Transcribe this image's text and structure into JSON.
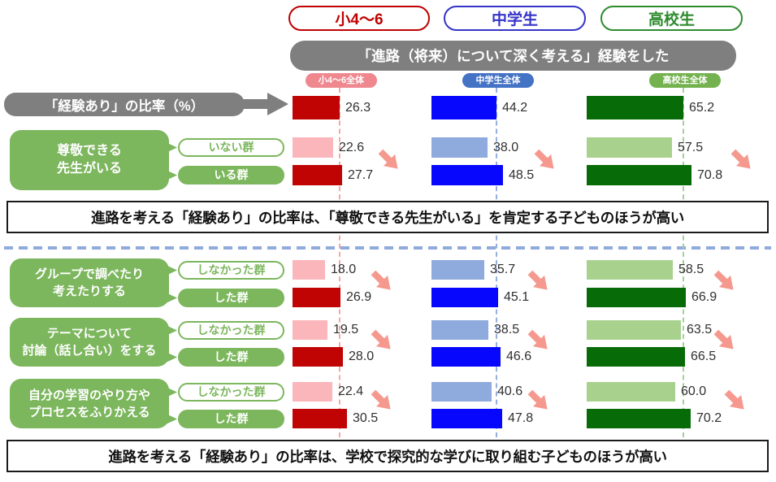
{
  "header": {
    "groups": [
      {
        "label": "小4〜6",
        "color": "#C00000"
      },
      {
        "label": "中学生",
        "color": "#3434C8"
      },
      {
        "label": "高校生",
        "color": "#2E8B2E"
      }
    ],
    "banner": "「進路（将来）について深く考える」経験をした",
    "banner_bg": "#7F7F7F",
    "overall_tags": [
      {
        "label": "小4〜6全体",
        "bg": "#EF878F"
      },
      {
        "label": "中学生全体",
        "bg": "#4472C4"
      },
      {
        "label": "高校生全体",
        "bg": "#74B24F"
      }
    ]
  },
  "left_panel": {
    "rate_label": "「経験あり」の比率（%）",
    "box_bg": "#7F7F7F",
    "category_box_bg": "#7CB65D"
  },
  "chart_data": {
    "type": "bar",
    "unit": "%",
    "title": "「進路（将来）について深く考える」経験をした",
    "ylabel": "「経験あり」の比率（%）",
    "groups": [
      "小4〜6",
      "中学生",
      "高校生"
    ],
    "overall": {
      "labels": [
        "小4〜6全体",
        "中学生全体",
        "高校生全体"
      ],
      "values": [
        26.3,
        44.2,
        65.2
      ]
    },
    "sections": [
      {
        "summary": "進路を考える「経験あり」の比率は、「尊敬できる先生がいる」を肯定する子どものほうが高い",
        "rows": [
          {
            "label_lines": [
              "尊敬できる",
              "先生がいる"
            ],
            "series": [
              {
                "name": "いない群",
                "values": [
                  22.6,
                  38.0,
                  57.5
                ]
              },
              {
                "name": "いる群",
                "values": [
                  27.7,
                  48.5,
                  70.8
                ]
              }
            ]
          }
        ]
      },
      {
        "summary": "進路を考える「経験あり」の比率は、学校で探究的な学びに取り組む子どものほうが高い",
        "rows": [
          {
            "label_lines": [
              "グループで調べたり",
              "考えたりする"
            ],
            "series": [
              {
                "name": "しなかった群",
                "values": [
                  18.0,
                  35.7,
                  58.5
                ]
              },
              {
                "name": "した群",
                "values": [
                  26.9,
                  45.1,
                  66.9
                ]
              }
            ]
          },
          {
            "label_lines": [
              "テーマについて",
              "討論（話し合い）をする"
            ],
            "series": [
              {
                "name": "しなかった群",
                "values": [
                  19.5,
                  38.5,
                  63.5
                ]
              },
              {
                "name": "した群",
                "values": [
                  28.0,
                  46.6,
                  66.5
                ]
              }
            ]
          },
          {
            "label_lines": [
              "自分の学習のやり方や",
              "プロセスをふりかえる"
            ],
            "series": [
              {
                "name": "しなかった群",
                "values": [
                  22.4,
                  40.6,
                  60.0
                ]
              },
              {
                "name": "した群",
                "values": [
                  30.5,
                  47.8,
                  70.2
                ]
              }
            ]
          }
        ]
      }
    ],
    "colors": {
      "bar_dark": [
        "#C00404",
        "#0707FE",
        "#076C07"
      ],
      "bar_light": [
        "#FBB6BC",
        "#8FAADC",
        "#A9D18E"
      ],
      "ref_line": [
        "#F5A8A3",
        "#97AFE0",
        "#A5CE9B"
      ],
      "arrow": "#F5998F"
    },
    "legend_position": "none",
    "grid": false
  }
}
